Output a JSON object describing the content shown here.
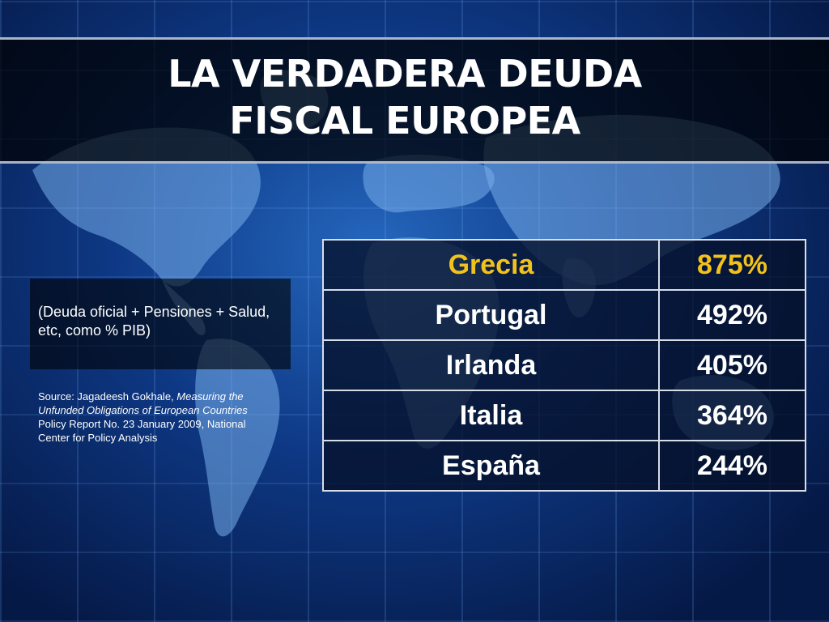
{
  "slide": {
    "title_line1": "LA VERDADERA DEUDA",
    "title_line2": "FISCAL EUROPEA",
    "note": "(Deuda oficial + Pensiones + Salud, etc, como % PIB)",
    "source": {
      "prefix": "Source: Jagadeesh Gokhale, ",
      "italic": "Measuring the Unfunded Obligations of European Countries",
      "suffix": " Policy Report No. 23 January 2009, National Center for Policy Analysis"
    }
  },
  "table": {
    "highlight_color": "#f2c21b",
    "rows": [
      {
        "country": "Grecia",
        "value": "875%"
      },
      {
        "country": "Portugal",
        "value": "492%"
      },
      {
        "country": "Irlanda",
        "value": "405%"
      },
      {
        "country": "Italia",
        "value": "364%"
      },
      {
        "country": "España",
        "value": "244%"
      }
    ]
  }
}
